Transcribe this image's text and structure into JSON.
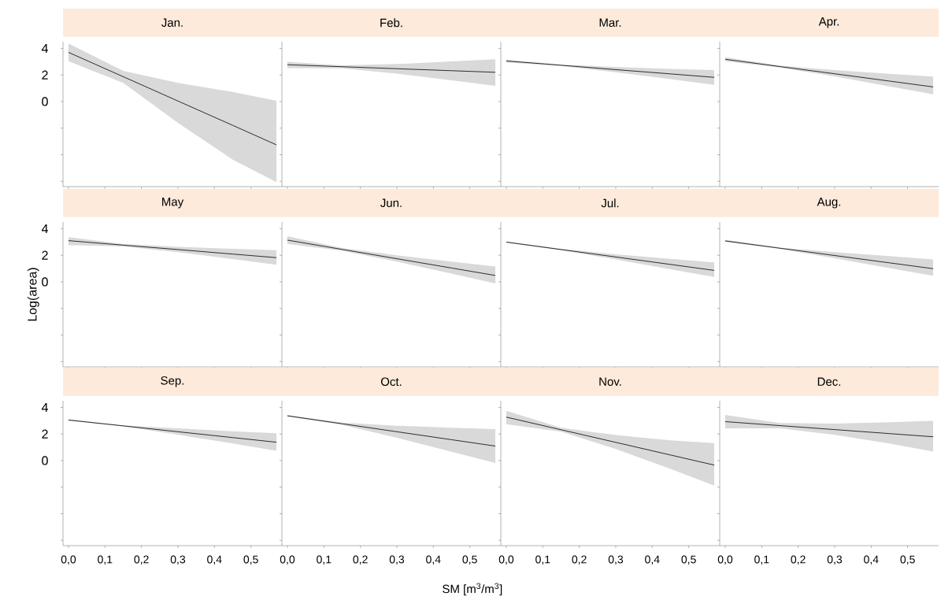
{
  "chart_data": [
    {
      "type": "line",
      "title": "Jan.",
      "x": [
        0,
        0.15,
        0.3,
        0.45,
        0.57
      ],
      "series": [
        {
          "color": "#1a1a1a",
          "values": [
            3.7,
            1.87,
            0.04,
            -1.79,
            -3.26
          ],
          "upper": [
            4.36,
            2.3,
            1.4,
            0.73,
            0.05
          ],
          "lower": [
            3.04,
            1.4,
            -1.6,
            -4.37,
            -6.06
          ]
        }
      ],
      "xlim": [
        -0.015,
        0.585
      ],
      "ylim": [
        -6.4,
        4.5
      ],
      "xticks": [
        {
          "value": 0,
          "label": null
        },
        {
          "value": 0.1,
          "label": null
        },
        {
          "value": 0.2,
          "label": null
        },
        {
          "value": 0.3,
          "label": null
        },
        {
          "value": 0.4,
          "label": null
        },
        {
          "value": 0.5,
          "label": null
        }
      ],
      "yticks": [
        {
          "value": -6,
          "label": null
        },
        {
          "value": -4,
          "label": null
        },
        {
          "value": -2,
          "label": null
        },
        0,
        2,
        4
      ],
      "tick_labels": "y"
    },
    {
      "type": "line",
      "title": "Feb.",
      "x": [
        0,
        0.15,
        0.3,
        0.45,
        0.57
      ],
      "series": [
        {
          "color": "#1a1a1a",
          "values": [
            2.77,
            2.62,
            2.47,
            2.32,
            2.2
          ],
          "upper": [
            2.99,
            2.72,
            2.82,
            3.02,
            3.18
          ],
          "lower": [
            2.52,
            2.5,
            2.1,
            1.6,
            1.18
          ]
        }
      ],
      "xlim": [
        -0.015,
        0.585
      ],
      "ylim": [
        -6.4,
        4.5
      ],
      "xticks": [
        {
          "value": 0,
          "label": null
        },
        {
          "value": 0.1,
          "label": null
        },
        {
          "value": 0.2,
          "label": null
        },
        {
          "value": 0.3,
          "label": null
        },
        {
          "value": 0.4,
          "label": null
        },
        {
          "value": 0.5,
          "label": null
        }
      ],
      "yticks": [
        {
          "value": -6,
          "label": null
        },
        {
          "value": -4,
          "label": null
        },
        {
          "value": -2,
          "label": null
        },
        {
          "value": 0,
          "label": null
        },
        {
          "value": 2,
          "label": null
        },
        {
          "value": 4,
          "label": null
        }
      ],
      "tick_labels": false
    },
    {
      "type": "line",
      "title": "Mar.",
      "x": [
        0,
        0.15,
        0.3,
        0.45,
        0.57
      ],
      "series": [
        {
          "color": "#1a1a1a",
          "values": [
            3.05,
            2.73,
            2.4,
            2.08,
            1.82
          ],
          "upper": [
            3.15,
            2.78,
            2.6,
            2.46,
            2.36
          ],
          "lower": [
            2.95,
            2.68,
            2.2,
            1.68,
            1.25
          ]
        }
      ],
      "xlim": [
        -0.015,
        0.585
      ],
      "ylim": [
        -6.4,
        4.5
      ],
      "xticks": [
        {
          "value": 0,
          "label": null
        },
        {
          "value": 0.1,
          "label": null
        },
        {
          "value": 0.2,
          "label": null
        },
        {
          "value": 0.3,
          "label": null
        },
        {
          "value": 0.4,
          "label": null
        },
        {
          "value": 0.5,
          "label": null
        }
      ],
      "yticks": [
        {
          "value": -6,
          "label": null
        },
        {
          "value": -4,
          "label": null
        },
        {
          "value": -2,
          "label": null
        },
        {
          "value": 0,
          "label": null
        },
        {
          "value": 2,
          "label": null
        },
        {
          "value": 4,
          "label": null
        }
      ],
      "tick_labels": false
    },
    {
      "type": "line",
      "title": "Apr.",
      "x": [
        0,
        0.15,
        0.3,
        0.45,
        0.57
      ],
      "series": [
        {
          "color": "#1a1a1a",
          "values": [
            3.18,
            2.63,
            2.09,
            1.54,
            1.1
          ],
          "upper": [
            3.33,
            2.7,
            2.37,
            2.09,
            1.88
          ],
          "lower": [
            3.03,
            2.56,
            1.89,
            1.14,
            0.55
          ]
        }
      ],
      "xlim": [
        -0.015,
        0.585
      ],
      "ylim": [
        -6.4,
        4.5
      ],
      "xticks": [
        {
          "value": 0,
          "label": null
        },
        {
          "value": 0.1,
          "label": null
        },
        {
          "value": 0.2,
          "label": null
        },
        {
          "value": 0.3,
          "label": null
        },
        {
          "value": 0.4,
          "label": null
        },
        {
          "value": 0.5,
          "label": null
        }
      ],
      "yticks": [
        {
          "value": -6,
          "label": null
        },
        {
          "value": -4,
          "label": null
        },
        {
          "value": -2,
          "label": null
        },
        {
          "value": 0,
          "label": null
        },
        {
          "value": 2,
          "label": null
        },
        {
          "value": 4,
          "label": null
        }
      ],
      "tick_labels": false
    },
    {
      "type": "line",
      "title": "May",
      "ylabel": "Log(area)",
      "x": [
        0,
        0.15,
        0.3,
        0.45,
        0.57
      ],
      "series": [
        {
          "color": "#1a1a1a",
          "values": [
            3.1,
            2.76,
            2.43,
            2.09,
            1.82
          ],
          "upper": [
            3.36,
            2.86,
            2.63,
            2.49,
            2.38
          ],
          "lower": [
            2.77,
            2.66,
            2.23,
            1.71,
            1.28
          ]
        }
      ],
      "xlim": [
        -0.015,
        0.585
      ],
      "ylim": [
        -6.4,
        4.5
      ],
      "xticks": [
        {
          "value": 0,
          "label": null
        },
        {
          "value": 0.1,
          "label": null
        },
        {
          "value": 0.2,
          "label": null
        },
        {
          "value": 0.3,
          "label": null
        },
        {
          "value": 0.4,
          "label": null
        },
        {
          "value": 0.5,
          "label": null
        }
      ],
      "yticks": [
        {
          "value": -6,
          "label": null
        },
        {
          "value": -4,
          "label": null
        },
        {
          "value": -2,
          "label": null
        },
        0,
        2,
        4
      ],
      "tick_labels": "y"
    },
    {
      "type": "line",
      "title": "Jun.",
      "x": [
        0,
        0.15,
        0.3,
        0.45,
        0.57
      ],
      "series": [
        {
          "color": "#1a1a1a",
          "values": [
            3.14,
            2.44,
            1.74,
            1.04,
            0.48
          ],
          "upper": [
            3.43,
            2.54,
            1.99,
            1.52,
            1.15
          ],
          "lower": [
            2.86,
            2.34,
            1.52,
            0.62,
            -0.12
          ]
        }
      ],
      "xlim": [
        -0.015,
        0.585
      ],
      "ylim": [
        -6.4,
        4.5
      ],
      "xticks": [
        {
          "value": 0,
          "label": null
        },
        {
          "value": 0.1,
          "label": null
        },
        {
          "value": 0.2,
          "label": null
        },
        {
          "value": 0.3,
          "label": null
        },
        {
          "value": 0.4,
          "label": null
        },
        {
          "value": 0.5,
          "label": null
        }
      ],
      "yticks": [
        {
          "value": -6,
          "label": null
        },
        {
          "value": -4,
          "label": null
        },
        {
          "value": -2,
          "label": null
        },
        {
          "value": 0,
          "label": null
        },
        {
          "value": 2,
          "label": null
        },
        {
          "value": 4,
          "label": null
        }
      ],
      "tick_labels": false
    },
    {
      "type": "line",
      "title": "Jul.",
      "x": [
        0,
        0.15,
        0.3,
        0.45,
        0.57
      ],
      "series": [
        {
          "color": "#1a1a1a",
          "values": [
            2.99,
            2.43,
            1.87,
            1.31,
            0.86
          ],
          "upper": [
            3.04,
            2.48,
            2.07,
            1.73,
            1.46
          ],
          "lower": [
            2.94,
            2.38,
            1.69,
            0.95,
            0.36
          ]
        }
      ],
      "xlim": [
        -0.015,
        0.585
      ],
      "ylim": [
        -6.4,
        4.5
      ],
      "xticks": [
        {
          "value": 0,
          "label": null
        },
        {
          "value": 0.1,
          "label": null
        },
        {
          "value": 0.2,
          "label": null
        },
        {
          "value": 0.3,
          "label": null
        },
        {
          "value": 0.4,
          "label": null
        },
        {
          "value": 0.5,
          "label": null
        }
      ],
      "yticks": [
        {
          "value": -6,
          "label": null
        },
        {
          "value": -4,
          "label": null
        },
        {
          "value": -2,
          "label": null
        },
        {
          "value": 0,
          "label": null
        },
        {
          "value": 2,
          "label": null
        },
        {
          "value": 4,
          "label": null
        }
      ],
      "tick_labels": false
    },
    {
      "type": "line",
      "title": "Aug.",
      "x": [
        0,
        0.15,
        0.3,
        0.45,
        0.57
      ],
      "series": [
        {
          "color": "#1a1a1a",
          "values": [
            3.08,
            2.53,
            1.98,
            1.43,
            0.99
          ],
          "upper": [
            3.16,
            2.58,
            2.23,
            1.93,
            1.69
          ],
          "lower": [
            3.0,
            2.48,
            1.78,
            1.03,
            0.45
          ]
        }
      ],
      "xlim": [
        -0.015,
        0.585
      ],
      "ylim": [
        -6.4,
        4.5
      ],
      "xticks": [
        {
          "value": 0,
          "label": null
        },
        {
          "value": 0.1,
          "label": null
        },
        {
          "value": 0.2,
          "label": null
        },
        {
          "value": 0.3,
          "label": null
        },
        {
          "value": 0.4,
          "label": null
        },
        {
          "value": 0.5,
          "label": null
        }
      ],
      "yticks": [
        {
          "value": -6,
          "label": null
        },
        {
          "value": -4,
          "label": null
        },
        {
          "value": -2,
          "label": null
        },
        {
          "value": 0,
          "label": null
        },
        {
          "value": 2,
          "label": null
        },
        {
          "value": 4,
          "label": null
        }
      ],
      "tick_labels": false
    },
    {
      "type": "line",
      "title": "Sep.",
      "x": [
        0,
        0.15,
        0.3,
        0.45,
        0.57
      ],
      "series": [
        {
          "color": "#1a1a1a",
          "values": [
            3.05,
            2.61,
            2.17,
            1.73,
            1.38
          ],
          "upper": [
            3.1,
            2.65,
            2.42,
            2.21,
            2.06
          ],
          "lower": [
            3.0,
            2.57,
            1.95,
            1.28,
            0.73
          ]
        }
      ],
      "xlim": [
        -0.015,
        0.585
      ],
      "ylim": [
        -6.4,
        4.5
      ],
      "xticks": [
        {
          "value": 0,
          "label": "0,0"
        },
        {
          "value": 0.1,
          "label": "0,1"
        },
        {
          "value": 0.2,
          "label": "0,2"
        },
        {
          "value": 0.3,
          "label": "0,3"
        },
        {
          "value": 0.4,
          "label": "0,4"
        },
        {
          "value": 0.5,
          "label": "0,5"
        }
      ],
      "yticks": [
        {
          "value": -6,
          "label": null
        },
        {
          "value": -4,
          "label": null
        },
        {
          "value": -2,
          "label": null
        },
        0,
        2,
        4
      ]
    },
    {
      "type": "line",
      "title": "Oct.",
      "xlabel": "SM [m$^{3}$/m$^{3}$]",
      "x": [
        0,
        0.15,
        0.3,
        0.45,
        0.57
      ],
      "series": [
        {
          "color": "#1a1a1a",
          "values": [
            3.37,
            2.77,
            2.17,
            1.57,
            1.09
          ],
          "upper": [
            3.42,
            2.85,
            2.62,
            2.47,
            2.36
          ],
          "lower": [
            3.32,
            2.69,
            1.72,
            0.67,
            -0.18
          ]
        }
      ],
      "xlim": [
        -0.015,
        0.585
      ],
      "ylim": [
        -6.4,
        4.5
      ],
      "xticks": [
        {
          "value": 0,
          "label": "0,0"
        },
        {
          "value": 0.1,
          "label": "0,1"
        },
        {
          "value": 0.2,
          "label": "0,2"
        },
        {
          "value": 0.3,
          "label": "0,3"
        },
        {
          "value": 0.4,
          "label": "0,4"
        },
        {
          "value": 0.5,
          "label": "0,5"
        }
      ],
      "yticks": [
        {
          "value": -6,
          "label": null
        },
        {
          "value": -4,
          "label": null
        },
        {
          "value": -2,
          "label": null
        },
        {
          "value": 0,
          "label": null
        },
        {
          "value": 2,
          "label": null
        },
        {
          "value": 4,
          "label": null
        }
      ],
      "tick_labels": "x"
    },
    {
      "type": "line",
      "title": "Nov.",
      "x": [
        0,
        0.15,
        0.3,
        0.45,
        0.57
      ],
      "series": [
        {
          "color": "#1a1a1a",
          "values": [
            3.27,
            2.32,
            1.37,
            0.42,
            -0.34
          ],
          "upper": [
            3.75,
            2.47,
            1.92,
            1.52,
            1.31
          ],
          "lower": [
            2.74,
            2.17,
            0.87,
            -0.63,
            -1.89
          ]
        }
      ],
      "xlim": [
        -0.015,
        0.585
      ],
      "ylim": [
        -6.4,
        4.5
      ],
      "xticks": [
        {
          "value": 0,
          "label": "0,0"
        },
        {
          "value": 0.1,
          "label": "0,1"
        },
        {
          "value": 0.2,
          "label": "0,2"
        },
        {
          "value": 0.3,
          "label": "0,3"
        },
        {
          "value": 0.4,
          "label": "0,4"
        },
        {
          "value": 0.5,
          "label": "0,5"
        }
      ],
      "yticks": [
        {
          "value": -6,
          "label": null
        },
        {
          "value": -4,
          "label": null
        },
        {
          "value": -2,
          "label": null
        },
        {
          "value": 0,
          "label": null
        },
        {
          "value": 2,
          "label": null
        },
        {
          "value": 4,
          "label": null
        }
      ],
      "tick_labels": "x"
    },
    {
      "type": "line",
      "title": "Dec.",
      "x": [
        0,
        0.15,
        0.3,
        0.45,
        0.57
      ],
      "series": [
        {
          "color": "#1a1a1a",
          "values": [
            2.93,
            2.63,
            2.33,
            2.03,
            1.79
          ],
          "upper": [
            3.43,
            2.83,
            2.78,
            2.88,
            2.99
          ],
          "lower": [
            2.42,
            2.43,
            1.93,
            1.28,
            0.68
          ]
        }
      ],
      "xlim": [
        -0.015,
        0.585
      ],
      "ylim": [
        -6.4,
        4.5
      ],
      "xticks": [
        {
          "value": 0,
          "label": "0,0"
        },
        {
          "value": 0.1,
          "label": "0,1"
        },
        {
          "value": 0.2,
          "label": "0,2"
        },
        {
          "value": 0.3,
          "label": "0,3"
        },
        {
          "value": 0.4,
          "label": "0,4"
        },
        {
          "value": 0.5,
          "label": "0,5"
        }
      ],
      "yticks": [
        {
          "value": -6,
          "label": null
        },
        {
          "value": -4,
          "label": null
        },
        {
          "value": -2,
          "label": null
        },
        {
          "value": 0,
          "label": null
        },
        {
          "value": 2,
          "label": null
        },
        {
          "value": 4,
          "label": null
        }
      ],
      "tick_labels": "x"
    }
  ]
}
